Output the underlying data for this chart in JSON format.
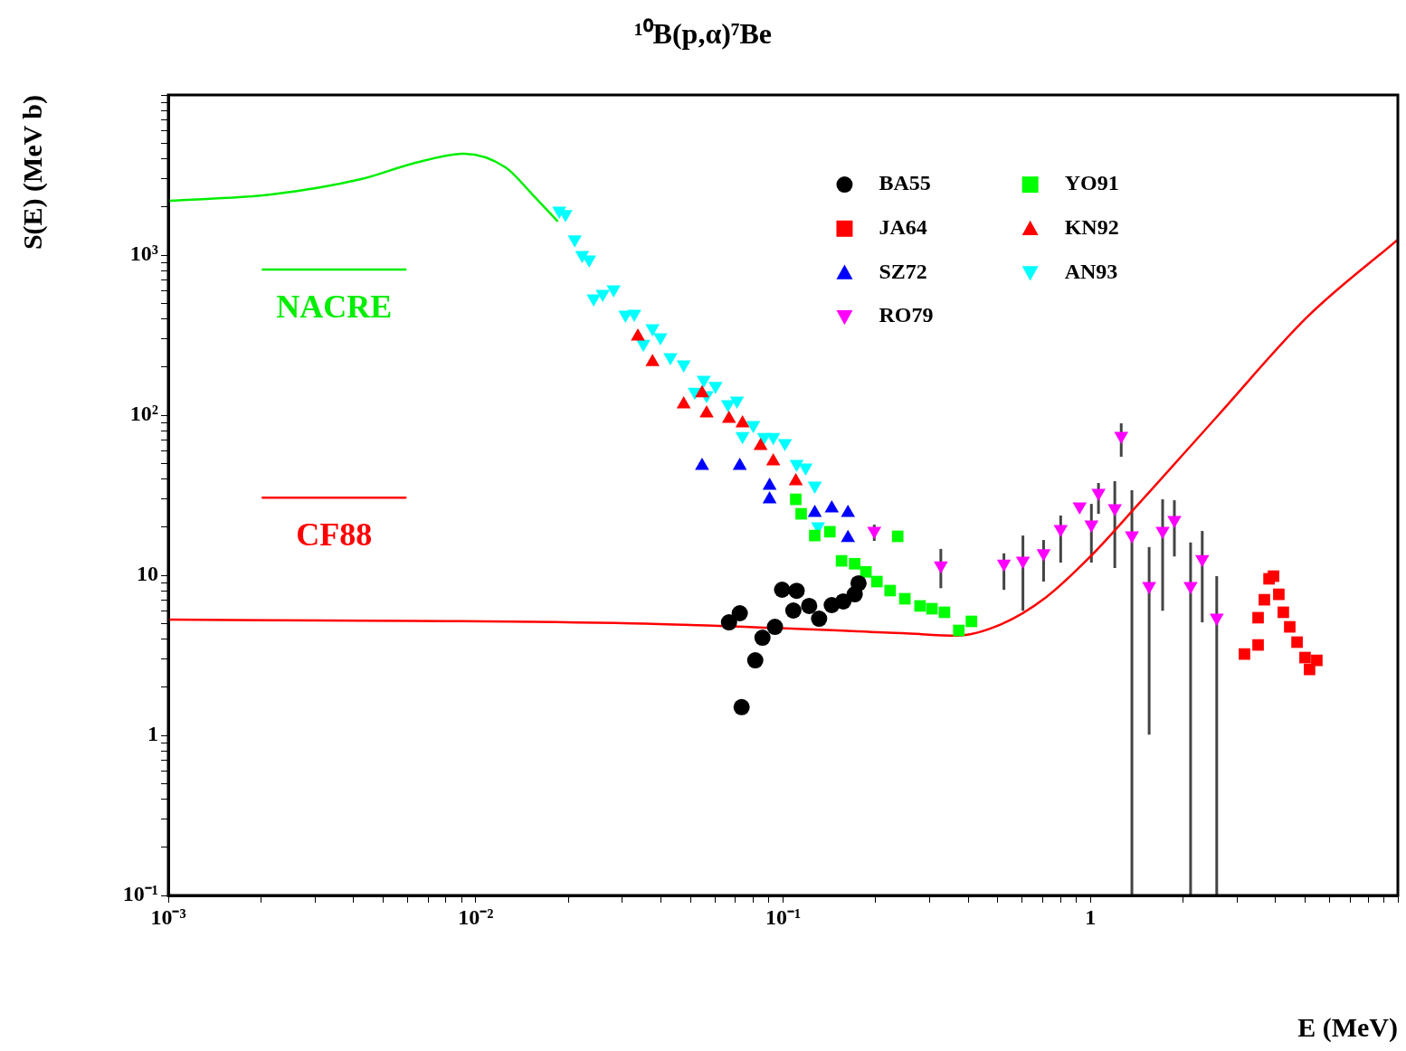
{
  "chart_data": {
    "type": "scatter",
    "title": "¹⁰B(p,α)⁷Be",
    "xlabel": "E (MeV)",
    "ylabel": "S(E) (MeV b)",
    "log": "xy",
    "grid": false,
    "legend": "top right",
    "xlim": [
      0.001,
      10
    ],
    "ylim": [
      0.1,
      10000
    ],
    "xticks": [
      {
        "value": 0.001,
        "label": "10⁻³"
      },
      {
        "value": 0.002,
        "label": null
      },
      {
        "value": 0.003,
        "label": null
      },
      {
        "value": 0.004,
        "label": null
      },
      {
        "value": 0.005,
        "label": null
      },
      {
        "value": 0.006,
        "label": null
      },
      {
        "value": 0.007,
        "label": null
      },
      {
        "value": 0.008,
        "label": null
      },
      {
        "value": 0.009,
        "label": null
      },
      {
        "value": 0.01,
        "label": "10⁻²"
      },
      {
        "value": 0.02,
        "label": null
      },
      {
        "value": 0.03,
        "label": null
      },
      {
        "value": 0.04,
        "label": null
      },
      {
        "value": 0.05,
        "label": null
      },
      {
        "value": 0.06,
        "label": null
      },
      {
        "value": 0.07,
        "label": null
      },
      {
        "value": 0.08,
        "label": null
      },
      {
        "value": 0.09,
        "label": null
      },
      {
        "value": 0.1,
        "label": "10⁻¹"
      },
      {
        "value": 0.2,
        "label": null
      },
      {
        "value": 0.3,
        "label": null
      },
      {
        "value": 0.4,
        "label": null
      },
      {
        "value": 0.5,
        "label": null
      },
      {
        "value": 0.6,
        "label": null
      },
      {
        "value": 0.7,
        "label": null
      },
      {
        "value": 0.8,
        "label": null
      },
      {
        "value": 0.9,
        "label": null
      },
      1,
      {
        "value": 2,
        "label": null
      },
      {
        "value": 3,
        "label": null
      },
      {
        "value": 4,
        "label": null
      },
      {
        "value": 5,
        "label": null
      },
      {
        "value": 6,
        "label": null
      },
      {
        "value": 7,
        "label": null
      },
      {
        "value": 8,
        "label": null
      },
      {
        "value": 9,
        "label": null
      },
      {
        "value": 10,
        "label": null
      }
    ],
    "yticks": [
      {
        "value": 0.1,
        "label": "10⁻¹"
      },
      {
        "value": 0.2,
        "label": null
      },
      {
        "value": 0.3,
        "label": null
      },
      {
        "value": 0.4,
        "label": null
      },
      {
        "value": 0.5,
        "label": null
      },
      {
        "value": 0.6,
        "label": null
      },
      {
        "value": 0.7,
        "label": null
      },
      {
        "value": 0.8,
        "label": null
      },
      {
        "value": 0.9,
        "label": null
      },
      1,
      {
        "value": 2,
        "label": null
      },
      {
        "value": 3,
        "label": null
      },
      {
        "value": 4,
        "label": null
      },
      {
        "value": 5,
        "label": null
      },
      {
        "value": 6,
        "label": null
      },
      {
        "value": 7,
        "label": null
      },
      {
        "value": 8,
        "label": null
      },
      {
        "value": 9,
        "label": null
      },
      10,
      {
        "value": 20,
        "label": null
      },
      {
        "value": 30,
        "label": null
      },
      {
        "value": 40,
        "label": null
      },
      {
        "value": 50,
        "label": null
      },
      {
        "value": 60,
        "label": null
      },
      {
        "value": 70,
        "label": null
      },
      {
        "value": 80,
        "label": null
      },
      {
        "value": 90,
        "label": null
      },
      {
        "value": 100,
        "label": "10²"
      },
      {
        "value": 200,
        "label": null
      },
      {
        "value": 300,
        "label": null
      },
      {
        "value": 400,
        "label": null
      },
      {
        "value": 500,
        "label": null
      },
      {
        "value": 600,
        "label": null
      },
      {
        "value": 700,
        "label": null
      },
      {
        "value": 800,
        "label": null
      },
      {
        "value": 900,
        "label": null
      },
      {
        "value": 1000,
        "label": "10³"
      },
      {
        "value": 2000,
        "label": null
      },
      {
        "value": 3000,
        "label": null
      },
      {
        "value": 4000,
        "label": null
      },
      {
        "value": 5000,
        "label": null
      },
      {
        "value": 6000,
        "label": null
      },
      {
        "value": 7000,
        "label": null
      },
      {
        "value": 8000,
        "label": null
      },
      {
        "value": 9000,
        "label": null
      },
      {
        "value": 10000,
        "label": null
      }
    ],
    "series": [
      {
        "name": "BA55",
        "color": "#000000",
        "marker": "circle",
        "x": [
          0.0667,
          0.0723,
          0.0857,
          0.0812,
          0.0733,
          0.0941,
          0.0993,
          0.1107,
          0.108,
          0.1216,
          0.131,
          0.144,
          0.157,
          0.171,
          0.176
        ],
        "values": [
          5.08,
          5.79,
          4.07,
          2.94,
          1.5,
          4.76,
          8.12,
          8.0,
          6.02,
          6.43,
          5.35,
          6.51,
          6.86,
          7.6,
          8.9
        ]
      },
      {
        "name": "JA64",
        "color": "#ff0000",
        "marker": "square",
        "x": [
          3.17,
          3.51,
          3.51,
          3.68,
          3.81,
          3.94,
          4.1,
          4.24,
          4.45,
          4.7,
          4.99,
          5.16,
          5.45
        ],
        "values": [
          3.22,
          3.67,
          5.43,
          7.03,
          9.5,
          9.87,
          7.6,
          5.87,
          4.76,
          3.82,
          3.06,
          2.58,
          2.94
        ]
      },
      {
        "name": "SZ72",
        "color": "#0000ff",
        "marker": "triangle",
        "x": [
          0.0545,
          0.0723,
          0.0904,
          0.0904,
          0.1268,
          0.144,
          0.1626,
          0.1626
        ],
        "values": [
          48.3,
          48.3,
          36.2,
          29.8,
          24.5,
          26.2,
          24.5,
          17.1
        ]
      },
      {
        "name": "RO79",
        "color": "#ff00ff",
        "marker": "triangle-down",
        "x": [
          0.198,
          0.326,
          0.523,
          0.603,
          0.704,
          0.8,
          0.922,
          1.007,
          1.062,
          1.2,
          1.259,
          1.364,
          1.552,
          1.717,
          1.875,
          2.117,
          2.31,
          2.575
        ],
        "values": [
          18.9,
          11.5,
          11.8,
          12.3,
          13.7,
          19.4,
          26.9,
          20.7,
          32.7,
          26.2,
          74.1,
          17.7,
          8.55,
          18.9,
          22.1,
          8.55,
          12.6,
          5.43
        ],
        "errors": [
          [
            16.4,
            20.7
          ],
          [
            8.3,
            14.6
          ],
          [
            8.1,
            13.7
          ],
          [
            6.0,
            17.7
          ],
          [
            9.13,
            16.6
          ],
          [
            12.0,
            23.6
          ],
          null,
          [
            12.0,
            27.9
          ],
          [
            24.2,
            37.7
          ],
          [
            11.1,
            38.7
          ],
          [
            55,
            88.9
          ],
          [
            0.1,
            34
          ],
          [
            1.01,
            15.0
          ],
          [
            6.0,
            29.8
          ],
          [
            13.1,
            29.4
          ],
          [
            0.1,
            16.0
          ],
          [
            5.08,
            18.9
          ],
          [
            0.1,
            9.87
          ]
        ]
      },
      {
        "name": "YO91",
        "color": "#00ff00",
        "marker": "square",
        "x": [
          0.11,
          0.1145,
          0.1268,
          0.142,
          0.236,
          0.155,
          0.171,
          0.186,
          0.202,
          0.223,
          0.249,
          0.279,
          0.305,
          0.335,
          0.373,
          0.41
        ],
        "values": [
          29.8,
          24.2,
          17.7,
          18.7,
          17.5,
          12.3,
          11.8,
          10.5,
          9.13,
          8.02,
          7.13,
          6.43,
          6.18,
          5.87,
          4.52,
          5.15
        ]
      },
      {
        "name": "KN92",
        "color": "#ff0000",
        "marker": "triangle",
        "x": [
          0.0337,
          0.0376,
          0.0475,
          0.0545,
          0.0564,
          0.0667,
          0.0738,
          0.0845,
          0.0929,
          0.11
        ],
        "values": [
          310,
          215,
          117,
          137,
          102.6,
          94.9,
          89,
          64.3,
          51.5,
          38.7
        ]
      },
      {
        "name": "AN93",
        "color": "#00ffff",
        "marker": "triangle-down",
        "x": [
          0.0187,
          0.0196,
          0.021,
          0.0222,
          0.0234,
          0.0242,
          0.0259,
          0.0281,
          0.0307,
          0.0328,
          0.0351,
          0.0376,
          0.0399,
          0.043,
          0.0475,
          0.0516,
          0.0552,
          0.0564,
          0.0603,
          0.0662,
          0.0708,
          0.0738,
          0.08,
          0.0867,
          0.0929,
          0.1014,
          0.1107,
          0.1184,
          0.1268,
          0.13
        ],
        "values": [
          1890,
          1800,
          1250,
          1000,
          937,
          535,
          571,
          610,
          424,
          430,
          279,
          349,
          306,
          230,
          207,
          140,
          166,
          133,
          152,
          117,
          123,
          74,
          86.7,
          73,
          73,
          66.8,
          49.5,
          47,
          36.2,
          20.2
        ]
      },
      {
        "name": "NACRE",
        "type": "line",
        "color": "#00ee00",
        "x": [
          0.001,
          0.00216,
          0.00424,
          0.00637,
          0.0092,
          0.0125,
          0.0153,
          0.0185
        ],
        "values": [
          2180,
          2390,
          2980,
          3770,
          4300,
          3530,
          2390,
          1620
        ]
      },
      {
        "name": "CF88",
        "type": "line",
        "color": "#ff0000",
        "x": [
          0.001,
          0.0322,
          0.244,
          0.366,
          0.513,
          0.718,
          1,
          1.41,
          2.59,
          5.09,
          10
        ],
        "values": [
          5.28,
          5.0,
          4.35,
          4.2,
          4.95,
          7.3,
          13.1,
          26.9,
          98.7,
          413,
          1250
        ]
      }
    ]
  }
}
